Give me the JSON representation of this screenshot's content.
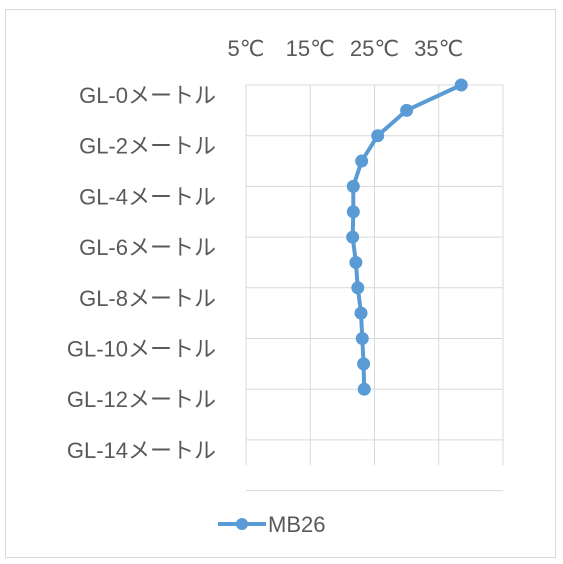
{
  "chart_data": {
    "type": "line",
    "orientation": "vertical-depth",
    "x_ticks": [
      "5℃",
      "15℃",
      "25℃",
      "35℃"
    ],
    "xlim": [
      5,
      45
    ],
    "y_categories": [
      "GL-0メートル",
      "GL-2メートル",
      "GL-4メートル",
      "GL-6メートル",
      "GL-8メートル",
      "GL-10メートル",
      "GL-12メートル",
      "GL-14メートル"
    ],
    "ylim": [
      0,
      14.5
    ],
    "x_axis_position": "top",
    "grid": true,
    "legend_position": "bottom",
    "series": [
      {
        "name": "MB26",
        "color": "#5B9BD5",
        "points": [
          {
            "depth": 0,
            "temp": 38.5
          },
          {
            "depth": 1,
            "temp": 30.0
          },
          {
            "depth": 2,
            "temp": 25.5
          },
          {
            "depth": 3,
            "temp": 23.0
          },
          {
            "depth": 4,
            "temp": 21.7
          },
          {
            "depth": 5,
            "temp": 21.7
          },
          {
            "depth": 6,
            "temp": 21.6
          },
          {
            "depth": 7,
            "temp": 22.1
          },
          {
            "depth": 8,
            "temp": 22.4
          },
          {
            "depth": 9,
            "temp": 22.9
          },
          {
            "depth": 10,
            "temp": 23.1
          },
          {
            "depth": 11,
            "temp": 23.3
          },
          {
            "depth": 12,
            "temp": 23.4
          }
        ]
      }
    ]
  }
}
